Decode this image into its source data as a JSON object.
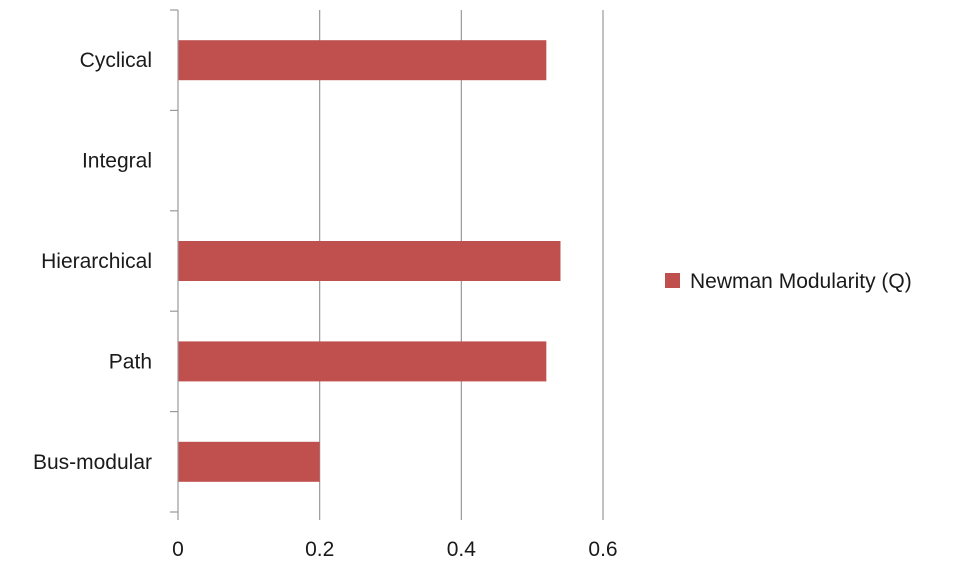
{
  "chart_data": {
    "type": "bar",
    "orientation": "horizontal",
    "categories": [
      "Cyclical",
      "Integral",
      "Hierarchical",
      "Path",
      "Bus-modular"
    ],
    "series": [
      {
        "name": "Newman Modularity (Q)",
        "values": [
          0.52,
          0,
          0.54,
          0.52,
          0.2
        ],
        "color": "#c0504d"
      }
    ],
    "xlim": [
      0,
      0.6
    ],
    "xticks": [
      "0",
      "0.2",
      "0.4",
      "0.6"
    ],
    "grid": "vertical",
    "legend_position": "right"
  }
}
